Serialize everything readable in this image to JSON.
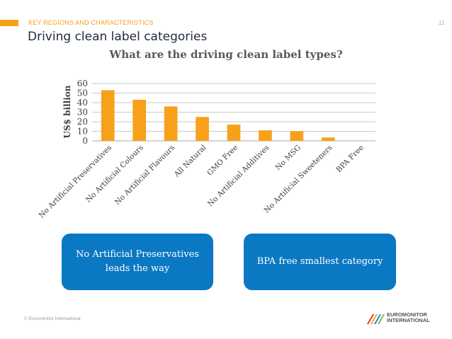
{
  "header": {
    "section_label": "KEY REGIONS AND CHARACTERISTICS",
    "page_number": "11",
    "accent_color": "#f7a11a"
  },
  "page_title": "Driving clean label categories",
  "chart_data": {
    "type": "bar",
    "title": "What are the driving clean label types?",
    "xlabel": "",
    "ylabel": "US$ billion",
    "ylim": [
      0,
      60
    ],
    "yticks": [
      0,
      10,
      20,
      30,
      40,
      50,
      60
    ],
    "grid": true,
    "bar_color": "#f7a11a",
    "categories": [
      "No Artificial Preservatives",
      "No Artificial Colours",
      "No Artificial Flavours",
      "All Natural",
      "GMO Free",
      "No Artificial Additives",
      "No MSG",
      "No Artificial Sweeteners",
      "BPA Free"
    ],
    "values": [
      53,
      43,
      36,
      25,
      17,
      11,
      10,
      3.5,
      0
    ]
  },
  "callouts": [
    {
      "text_line1": "No Artificial Preservatives",
      "text_line2": "leads the way"
    },
    {
      "text": "BPA free smallest category"
    }
  ],
  "callout_color": "#0b78c3",
  "footer": {
    "copyright": "© Euromonitor International",
    "logo_line1": "EUROMONITOR",
    "logo_line2": "INTERNATIONAL"
  }
}
